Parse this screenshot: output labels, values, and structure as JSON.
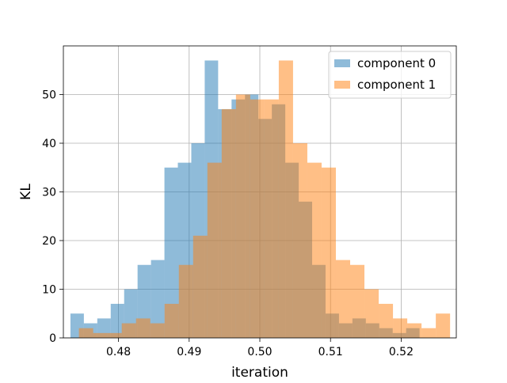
{
  "chart_data": {
    "type": "bar",
    "title": "",
    "xlabel": "iteration",
    "ylabel": "KL",
    "xlim": [
      0.4722,
      0.5278
    ],
    "ylim": [
      0,
      60
    ],
    "grid": true,
    "legend_position": "top-right",
    "x_ticks": [
      0.48,
      0.49,
      0.5,
      0.51,
      0.52
    ],
    "x_tick_labels": [
      "0.48",
      "0.49",
      "0.50",
      "0.51",
      "0.52"
    ],
    "y_ticks": [
      0,
      10,
      20,
      30,
      40,
      50
    ],
    "y_tick_labels": [
      "0",
      "10",
      "20",
      "30",
      "40",
      "50"
    ],
    "series": [
      {
        "name": "component 0",
        "color": "#1f77b4",
        "alpha": 0.5,
        "bin_start": 0.4732,
        "bin_width": 0.0019,
        "values": [
          5,
          3,
          4,
          7,
          10,
          15,
          16,
          35,
          36,
          40,
          57,
          47,
          49,
          50,
          45,
          48,
          36,
          28,
          15,
          5,
          3,
          4,
          3,
          2,
          1,
          2
        ]
      },
      {
        "name": "component 1",
        "color": "#ff7f0e",
        "alpha": 0.5,
        "bin_start": 0.4744,
        "bin_width": 0.00202,
        "values": [
          2,
          1,
          1,
          3,
          4,
          3,
          7,
          15,
          21,
          36,
          47,
          50,
          49,
          49,
          57,
          40,
          36,
          35,
          16,
          15,
          10,
          7,
          4,
          3,
          2,
          5
        ]
      }
    ]
  }
}
